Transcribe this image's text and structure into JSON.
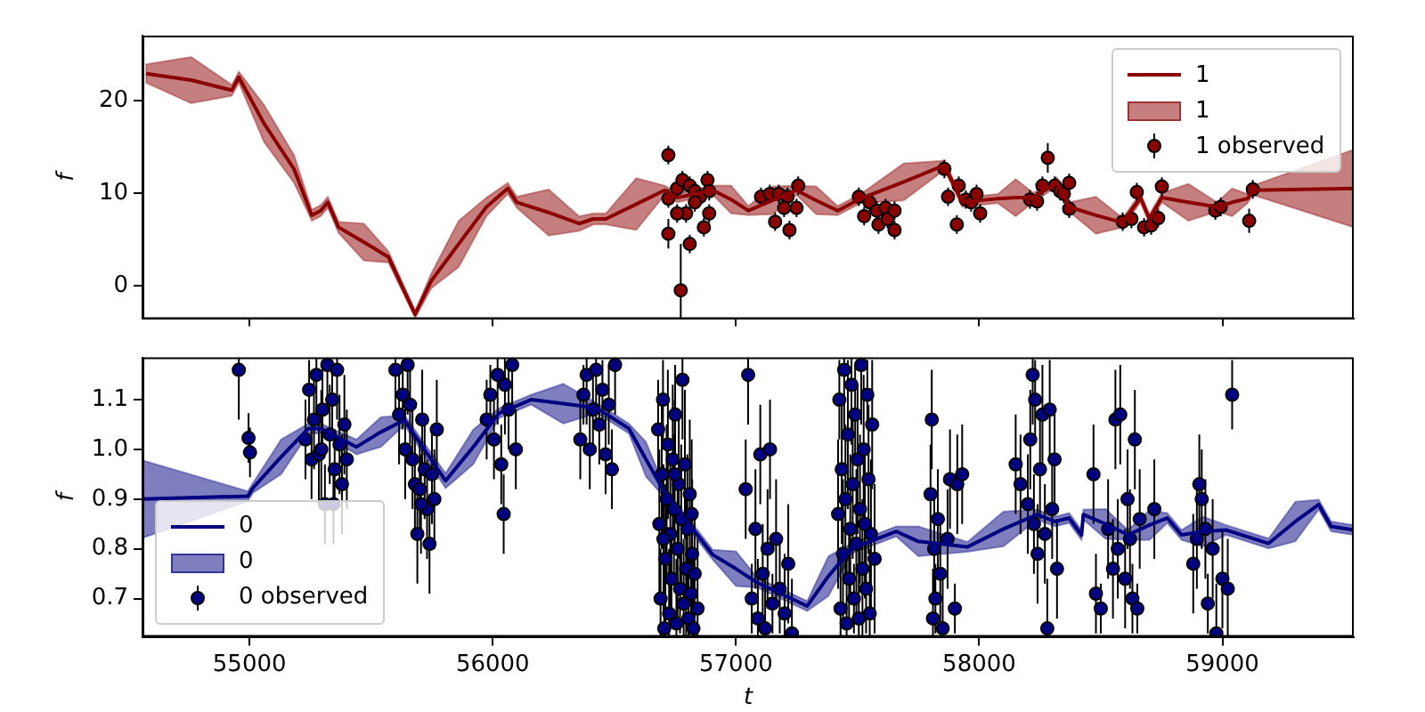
{
  "chart_data": [
    {
      "type": "line",
      "ylabel": "f",
      "xlim": [
        54560,
        59540
      ],
      "ylim": [
        -3.6,
        27
      ],
      "xticks": [
        55000,
        56000,
        57000,
        58000,
        59000
      ],
      "yticks": [
        0,
        10,
        20
      ],
      "tick_labels": "y",
      "legend": "top right",
      "series": [
        {
          "name": "1",
          "color": "#8b0000",
          "x": [
            54575,
            54760,
            54927,
            54956,
            55060,
            55183,
            55256,
            55293,
            55322,
            55366,
            55470,
            55571,
            55681,
            55747,
            55860,
            55974,
            56062,
            56099,
            56230,
            56355,
            56414,
            56465,
            56590,
            56707,
            56758,
            56905,
            56980,
            57051,
            57150,
            57249,
            57330,
            57418,
            57513,
            57690,
            57857,
            57930,
            58077,
            58150,
            58223,
            58319,
            58370,
            58480,
            58590,
            58663,
            58700,
            58751,
            58860,
            58978,
            59040,
            59103,
            59125,
            59540
          ],
          "values": [
            22.9,
            22.2,
            21.1,
            22.5,
            17.5,
            12.6,
            7.6,
            8.1,
            9.0,
            6.3,
            4.7,
            3.1,
            -3.1,
            0.5,
            4.5,
            8.5,
            10.5,
            9.0,
            7.9,
            6.7,
            7.2,
            7.2,
            8.8,
            10.3,
            9.5,
            10.3,
            9.3,
            8.1,
            9.2,
            10.3,
            9.2,
            8.1,
            9.4,
            11.2,
            13.0,
            9.0,
            9.4,
            9.5,
            9.5,
            11.2,
            8.5,
            7.6,
            6.8,
            9.5,
            7.2,
            9.5,
            9.0,
            8.5,
            9.0,
            9.4,
            10.3,
            10.5
          ],
          "lower": [
            21.9,
            19.7,
            20.5,
            21.9,
            15.5,
            11.1,
            7.0,
            7.5,
            8.4,
            5.7,
            2.7,
            2.5,
            -3.5,
            -0.3,
            2.0,
            7.5,
            9.9,
            8.4,
            5.4,
            5.9,
            6.6,
            6.6,
            6.0,
            9.8,
            9.0,
            9.8,
            7.8,
            7.6,
            7.7,
            9.8,
            7.7,
            7.6,
            8.9,
            9.2,
            12.5,
            8.5,
            8.9,
            7.5,
            9.0,
            10.7,
            8.0,
            5.6,
            6.3,
            9.0,
            6.7,
            9.0,
            7.0,
            8.0,
            7.5,
            8.9,
            9.8,
            6.3
          ],
          "upper": [
            23.9,
            24.7,
            21.7,
            23.1,
            19.5,
            14.1,
            8.2,
            8.7,
            9.6,
            6.9,
            6.7,
            3.7,
            -2.7,
            1.3,
            7.0,
            9.5,
            11.1,
            9.6,
            10.4,
            7.5,
            7.8,
            7.8,
            11.6,
            10.8,
            10.0,
            10.8,
            10.8,
            8.6,
            10.7,
            10.8,
            10.7,
            8.6,
            9.9,
            13.2,
            13.5,
            9.5,
            9.9,
            11.5,
            10.0,
            11.7,
            9.0,
            9.6,
            7.3,
            10.0,
            7.7,
            10.0,
            11.0,
            9.0,
            10.5,
            9.9,
            10.8,
            14.7
          ]
        },
        {
          "name": "1 observed",
          "type": "scatter",
          "marker": "circle",
          "color": "#8b0000",
          "x": [
            56722,
            56722,
            56773,
            56810,
            56722,
            56758,
            56780,
            56810,
            56831,
            56853,
            56883,
            56890,
            56868,
            56890,
            56795,
            56758,
            56831,
            57103,
            57139,
            57176,
            57212,
            57161,
            57198,
            57220,
            57249,
            57256,
            57505,
            57527,
            57549,
            57579,
            57586,
            57615,
            57623,
            57652,
            57652,
            57857,
            57872,
            57908,
            57916,
            57945,
            57967,
            57989,
            58004,
            58209,
            58238,
            58260,
            58282,
            58311,
            58333,
            58348,
            58370,
            58370,
            58590,
            58626,
            58648,
            58678,
            58707,
            58736,
            58751,
            58971,
            58993,
            59110,
            59125
          ],
          "values": [
            14.1,
            5.6,
            -0.5,
            4.5,
            9.4,
            10.5,
            11.4,
            10.8,
            10.2,
            9.6,
            11.4,
            10.2,
            6.3,
            7.8,
            7.8,
            7.8,
            9.0,
            9.6,
            9.9,
            9.9,
            9.6,
            6.9,
            8.4,
            6.0,
            8.4,
            10.8,
            9.6,
            7.5,
            9.0,
            8.1,
            6.6,
            8.4,
            7.2,
            6.0,
            8.1,
            12.6,
            9.6,
            6.6,
            10.8,
            9.3,
            9.0,
            9.9,
            7.8,
            9.3,
            9.1,
            10.8,
            13.8,
            10.8,
            10.2,
            9.9,
            11.1,
            8.3,
            6.9,
            7.2,
            10.1,
            6.3,
            6.5,
            7.3,
            10.7,
            8.1,
            8.5,
            7.0,
            10.4
          ],
          "errors": [
            1,
            1.6,
            [
              -3.6,
              4.5
            ],
            1,
            1,
            1,
            1,
            1,
            1,
            1,
            1,
            1,
            1,
            1,
            1,
            1,
            1,
            1,
            1,
            1,
            1,
            1,
            1,
            1,
            1,
            1,
            1,
            1,
            1,
            1,
            1,
            1,
            1,
            1,
            1,
            1,
            1,
            1,
            1,
            1,
            1,
            1,
            1,
            1,
            1,
            1,
            1.6,
            1,
            1,
            1,
            1,
            1,
            1,
            1,
            1,
            1,
            1,
            1,
            1,
            1,
            1,
            1.3,
            1
          ]
        }
      ]
    },
    {
      "type": "line",
      "xlabel": "t",
      "ylabel": "f",
      "xlim": [
        54560,
        59540
      ],
      "ylim": [
        0.623,
        1.185
      ],
      "xticks": [
        55000,
        56000,
        57000,
        58000,
        59000
      ],
      "yticks": [
        0.7,
        0.8,
        0.9,
        {
          "value": 1.0,
          "label": "1.0"
        },
        1.1
      ],
      "legend": "bottom left",
      "series": [
        {
          "name": "0",
          "color": "#000080",
          "x": [
            54560,
            54993,
            55015,
            55130,
            55242,
            55293,
            55440,
            55540,
            55637,
            55806,
            55920,
            56026,
            56158,
            56290,
            56429,
            56560,
            56630,
            56707,
            56905,
            57000,
            57088,
            57293,
            57380,
            57476,
            57659,
            57750,
            57952,
            58100,
            58238,
            58311,
            58370,
            58421,
            58428,
            58520,
            58612,
            58700,
            58773,
            58832,
            58920,
            59015,
            59190,
            59300,
            59396,
            59447,
            59540
          ],
          "values": [
            0.9,
            0.906,
            0.923,
            0.985,
            1.042,
            1.042,
            1.005,
            1.035,
            1.059,
            0.937,
            1.005,
            1.073,
            1.1,
            1.092,
            1.083,
            1.042,
            0.98,
            0.913,
            0.788,
            0.76,
            0.732,
            0.685,
            0.745,
            0.801,
            0.835,
            0.815,
            0.804,
            0.84,
            0.869,
            0.855,
            0.862,
            0.828,
            0.869,
            0.85,
            0.828,
            0.848,
            0.862,
            0.828,
            0.835,
            0.838,
            0.811,
            0.855,
            0.889,
            0.845,
            0.838
          ],
          "lower": [
            0.822,
            0.896,
            0.913,
            0.95,
            1.032,
            1.032,
            0.99,
            1.005,
            1.049,
            0.922,
            0.97,
            1.063,
            1.09,
            1.052,
            1.073,
            1.032,
            0.945,
            0.903,
            0.778,
            0.725,
            0.722,
            0.675,
            0.705,
            0.791,
            0.825,
            0.785,
            0.794,
            0.805,
            0.859,
            0.845,
            0.852,
            0.818,
            0.859,
            0.82,
            0.818,
            0.818,
            0.852,
            0.818,
            0.805,
            0.828,
            0.801,
            0.815,
            0.879,
            0.835,
            0.828
          ],
          "upper": [
            0.978,
            0.916,
            0.933,
            1.02,
            1.052,
            1.052,
            1.02,
            1.065,
            1.069,
            0.952,
            1.04,
            1.083,
            1.11,
            1.132,
            1.093,
            1.052,
            1.015,
            0.923,
            0.798,
            0.795,
            0.742,
            0.695,
            0.785,
            0.811,
            0.845,
            0.845,
            0.814,
            0.875,
            0.879,
            0.865,
            0.872,
            0.838,
            0.879,
            0.88,
            0.838,
            0.878,
            0.872,
            0.838,
            0.865,
            0.848,
            0.821,
            0.895,
            0.899,
            0.855,
            0.848
          ]
        },
        {
          "name": "0 observed",
          "type": "scatter",
          "marker": "circle",
          "color": "#000080",
          "x": [
            54956,
            54996,
            55002,
            55230,
            55245,
            55255,
            55265,
            55275,
            55285,
            55300,
            55310,
            55320,
            55330,
            55340,
            55350,
            55360,
            55370,
            55380,
            55390,
            55400,
            55345,
            55295,
            55600,
            55615,
            55630,
            55640,
            55650,
            55660,
            55670,
            55680,
            55690,
            55700,
            55710,
            55720,
            55730,
            55740,
            55750,
            55760,
            55770,
            55705,
            55975,
            55990,
            56005,
            56020,
            56035,
            56050,
            56065,
            56080,
            56095,
            56045,
            56360,
            56373,
            56386,
            56399,
            56412,
            56425,
            56438,
            56451,
            56464,
            56477,
            56490,
            56503,
            56680,
            56685,
            56690,
            56695,
            56700,
            56705,
            56710,
            56715,
            56720,
            56725,
            56730,
            56735,
            56740,
            56745,
            56750,
            56755,
            56760,
            56765,
            56770,
            56775,
            56780,
            56785,
            56790,
            56795,
            56800,
            56805,
            56810,
            56815,
            56820,
            56825,
            56830,
            56702,
            56748,
            56842,
            56818,
            57040,
            57050,
            57065,
            57080,
            57090,
            57100,
            57110,
            57120,
            57130,
            57140,
            57150,
            57165,
            57180,
            57200,
            57215,
            57230,
            57420,
            57425,
            57430,
            57435,
            57440,
            57445,
            57450,
            57455,
            57460,
            57465,
            57470,
            57475,
            57480,
            57485,
            57490,
            57495,
            57500,
            57505,
            57510,
            57515,
            57520,
            57525,
            57530,
            57535,
            57540,
            57545,
            57550,
            57555,
            57560,
            57570,
            57800,
            57805,
            57810,
            57815,
            57820,
            57830,
            57840,
            57850,
            57870,
            57880,
            57900,
            57910,
            57930,
            58150,
            58170,
            58200,
            58210,
            58220,
            58225,
            58230,
            58240,
            58250,
            58260,
            58270,
            58280,
            58290,
            58300,
            58310,
            58320,
            58470,
            58480,
            58500,
            58530,
            58550,
            58560,
            58570,
            58580,
            58600,
            58610,
            58620,
            58630,
            58640,
            58650,
            58660,
            58720,
            58880,
            58895,
            58905,
            58915,
            58930,
            58940,
            58960,
            58975,
            59000,
            59022,
            59040
          ],
          "values": [
            1.16,
            1.023,
            0.994,
            1.02,
            1.12,
            0.98,
            1.06,
            1.15,
            0.99,
            1.08,
            0.89,
            1.17,
            1.03,
            1.1,
            0.96,
            1.16,
            1.01,
            0.93,
            1.05,
            0.98,
            0.89,
            1.0,
            1.16,
            1.07,
            1.11,
            1.0,
            1.17,
            1.09,
            0.98,
            0.93,
            0.83,
            0.92,
            1.06,
            0.96,
            0.88,
            0.81,
            0.95,
            0.9,
            1.04,
            0.89,
            1.06,
            1.11,
            1.02,
            1.15,
            0.97,
            1.13,
            1.08,
            1.17,
            1.0,
            0.87,
            1.02,
            1.11,
            1.15,
            1.0,
            1.08,
            1.16,
            1.05,
            1.12,
            0.99,
            1.09,
            0.96,
            1.17,
            1.04,
            0.85,
            0.7,
            0.95,
            1.1,
            0.64,
            0.78,
            0.9,
            1.01,
            0.67,
            0.83,
            0.74,
            0.98,
            0.88,
            1.07,
            0.65,
            0.8,
            0.93,
            0.72,
            0.86,
            1.14,
            0.69,
            0.97,
            0.76,
            0.84,
            0.66,
            0.91,
            0.71,
            0.79,
            0.64,
            0.75,
            0.82,
            0.95,
            0.68,
            0.87,
            0.92,
            1.15,
            0.7,
            0.84,
            0.66,
            0.99,
            0.75,
            0.64,
            0.8,
            1.0,
            0.69,
            0.82,
            0.72,
            0.67,
            0.77,
            0.63,
            0.87,
            1.1,
            0.68,
            0.96,
            0.79,
            1.16,
            0.9,
            0.65,
            1.03,
            0.74,
            0.84,
            1.13,
            0.93,
            0.7,
            1.07,
            0.81,
            0.98,
            0.66,
            0.88,
            1.17,
            0.76,
            1.0,
            0.85,
            0.72,
            1.11,
            0.94,
            0.67,
            0.83,
            1.05,
            0.78,
            0.91,
            1.06,
            0.66,
            0.8,
            0.7,
            0.86,
            0.75,
            0.64,
            0.82,
            0.94,
            0.68,
            0.93,
            0.95,
            0.97,
            0.93,
            0.89,
            1.02,
            1.15,
            0.85,
            1.1,
            0.79,
            0.96,
            1.07,
            0.83,
            0.64,
            1.08,
            0.88,
            0.98,
            0.76,
            0.95,
            0.71,
            0.68,
            0.84,
            0.76,
            1.06,
            0.8,
            1.07,
            0.74,
            0.9,
            0.82,
            0.7,
            1.02,
            0.68,
            0.86,
            0.88,
            0.77,
            0.82,
            0.93,
            0.9,
            0.84,
            0.69,
            0.8,
            0.63,
            0.74,
            0.72,
            1.11
          ],
          "errors": [
            [
              1.06,
              1.185
            ],
            0.05,
            0.05,
            0.08,
            0.06,
            0.08,
            0.1,
            [
              1.05,
              1.185
            ],
            0.1,
            0.1,
            0.08,
            [
              1.07,
              1.185
            ],
            0.1,
            0.08,
            0.08,
            [
              1.06,
              1.185
            ],
            0.1,
            0.1,
            0.1,
            0.1,
            0.08,
            0.12,
            [
              1.06,
              1.185
            ],
            0.1,
            0.07,
            0.1,
            [
              1.07,
              1.185
            ],
            0.08,
            0.1,
            0.1,
            0.1,
            0.1,
            0.1,
            0.1,
            0.1,
            0.1,
            0.1,
            0.1,
            0.1,
            0.1,
            0.08,
            0.06,
            0.08,
            [
              1.05,
              1.185
            ],
            0.08,
            [
              1.03,
              1.185
            ],
            0.08,
            [
              1.07,
              1.185
            ],
            0.08,
            0.08,
            0.08,
            0.06,
            [
              1.05,
              1.185
            ],
            0.08,
            0.08,
            [
              1.06,
              1.185
            ],
            0.08,
            0.06,
            0.08,
            0.08,
            0.08,
            [
              1.07,
              1.185
            ],
            0.1,
            0.15,
            [
              0.623,
              0.8
            ],
            0.15,
            0.08,
            [
              0.623,
              0.78
            ],
            0.15,
            0.15,
            0.15,
            [
              0.623,
              0.8
            ],
            0.15,
            0.1,
            0.15,
            0.15,
            0.1,
            [
              0.623,
              0.78
            ],
            0.15,
            0.15,
            0.09,
            0.15,
            [
              1.02,
              1.185
            ],
            [
              0.623,
              0.82
            ],
            0.15,
            0.14,
            0.15,
            [
              0.623,
              0.8
            ],
            0.15,
            0.08,
            0.15,
            [
              0.623,
              0.79
            ],
            0.12,
            0.15,
            0.15,
            [
              0.623,
              0.82
            ],
            0.15,
            0.1,
            [
              1.05,
              1.185
            ],
            0.07,
            0.12,
            [
              0.623,
              0.78
            ],
            0.1,
            0.1,
            [
              0.623,
              0.76
            ],
            0.12,
            0.1,
            0.06,
            0.12,
            0.09,
            [
              0.623,
              0.79
            ],
            0.12,
            [
              0.623,
              0.74
            ],
            0.15,
            0.08,
            [
              0.623,
              0.8
            ],
            0.15,
            0.15,
            [
              1.04,
              1.185
            ],
            0.15,
            [
              0.623,
              0.78
            ],
            0.15,
            0.1,
            0.15,
            [
              1.01,
              1.185
            ],
            0.15,
            0.07,
            0.1,
            0.15,
            0.15,
            [
              0.623,
              0.8
            ],
            0.15,
            [
              1.05,
              1.185
            ],
            0.14,
            0.15,
            0.15,
            0.09,
            0.07,
            0.15,
            [
              0.623,
              0.8
            ],
            0.15,
            0.13,
            0.15,
            0.1,
            0.1,
            [
              0.623,
              0.76
            ],
            0.1,
            0.07,
            0.1,
            0.1,
            [
              0.623,
              0.74
            ],
            0.1,
            0.1,
            0.05,
            0.1,
            0.1,
            0.1,
            0.1,
            0.1,
            0.1,
            [
              1.05,
              1.185
            ],
            0.1,
            0.08,
            0.1,
            0.1,
            0.1,
            0.1,
            [
              0.623,
              0.74
            ],
            0.1,
            0.1,
            0.1,
            0.1,
            0.1,
            0.08,
            0.05,
            0.1,
            0.1,
            0.1,
            0.1,
            0.1,
            0.1,
            0.1,
            0.1,
            0.07,
            0.1,
            0.05,
            0.1,
            0.1,
            0.1,
            0.1,
            0.1,
            0.1,
            0.1,
            0.06,
            0.1,
            [
              0.623,
              0.73
            ],
            0.1,
            0.1,
            0.07
          ]
        }
      ]
    }
  ]
}
